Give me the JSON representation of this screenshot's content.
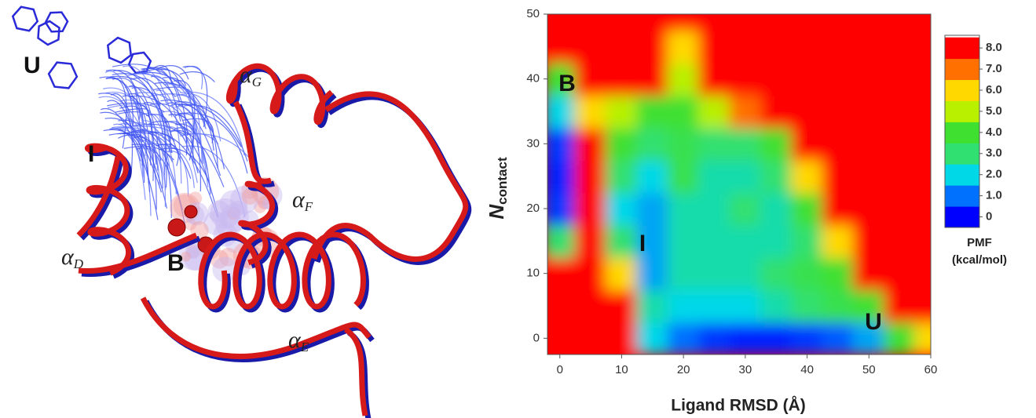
{
  "structure_panel": {
    "labels": [
      {
        "symbol": "U"
      },
      {
        "symbol": "I"
      },
      {
        "symbol": "B"
      },
      {
        "symbol": "α",
        "subscript": "G"
      },
      {
        "symbol": "α",
        "subscript": "F"
      },
      {
        "symbol": "α",
        "subscript": "D"
      },
      {
        "symbol": "α",
        "subscript": "E"
      }
    ]
  },
  "chart_data": {
    "type": "contour",
    "x_label": "Ligand RMSD (Å)",
    "y_label": {
      "symbol": "N",
      "subscript": "contact"
    },
    "annotations": [
      "B",
      "I",
      "U"
    ],
    "xlim": [
      -2,
      60
    ],
    "ylim": [
      -2.5,
      50
    ],
    "xticks": [
      0,
      10,
      20,
      30,
      40,
      50,
      60
    ],
    "yticks": [
      0,
      10,
      20,
      30,
      40,
      50
    ],
    "x": [
      0,
      5,
      10,
      15,
      20,
      25,
      30,
      35,
      40,
      45,
      50,
      55,
      60
    ],
    "y": [
      0,
      5,
      10,
      15,
      20,
      25,
      30,
      35,
      40,
      45,
      50
    ],
    "z": [
      [
        8,
        8,
        8,
        2,
        1,
        0.5,
        0.3,
        0.3,
        0.5,
        0.8,
        1.5,
        4,
        6
      ],
      [
        8,
        8,
        8,
        2.5,
        2,
        2,
        2,
        2.5,
        3,
        3.5,
        4,
        8,
        8
      ],
      [
        8,
        8,
        6,
        1.5,
        2.5,
        2.5,
        2.5,
        3,
        3.5,
        4,
        8,
        8,
        8
      ],
      [
        3,
        8,
        3,
        1.5,
        2.5,
        2.5,
        2.5,
        2.5,
        3,
        6,
        8,
        8,
        8
      ],
      [
        0.5,
        8,
        2,
        1.5,
        2.5,
        2.5,
        3,
        2.5,
        4,
        8,
        8,
        8,
        8
      ],
      [
        0.3,
        8,
        3,
        2,
        3.5,
        2.5,
        2.5,
        3,
        6,
        8,
        8,
        8,
        8
      ],
      [
        0.5,
        8,
        4,
        3,
        3.5,
        3,
        3,
        4,
        8,
        8,
        8,
        8,
        8
      ],
      [
        2,
        6,
        5,
        4,
        4,
        5,
        7,
        8,
        8,
        8,
        8,
        8,
        8
      ],
      [
        4,
        8,
        8,
        8,
        5,
        8,
        8,
        8,
        8,
        8,
        8,
        8,
        8
      ],
      [
        8,
        8,
        8,
        8,
        6,
        8,
        8,
        8,
        8,
        8,
        8,
        8,
        8
      ],
      [
        8,
        8,
        8,
        8,
        8,
        8,
        8,
        8,
        8,
        8,
        8,
        8,
        8
      ]
    ],
    "colormap": [
      "#0000ff",
      "#0070ff",
      "#00d8e8",
      "#30e070",
      "#40e030",
      "#b8f000",
      "#ffd800",
      "#ff7000",
      "#ff0000"
    ],
    "clim": [
      -0.5,
      8.6
    ],
    "colorbar_title": [
      "PMF",
      "(kcal/mol)"
    ],
    "colorbar_ticks": [
      0,
      {
        "value": 1,
        "label": "1.0"
      },
      {
        "value": 2,
        "label": "2.0"
      },
      {
        "value": 3,
        "label": "3.0"
      },
      {
        "value": 4,
        "label": "4.0"
      },
      {
        "value": 5,
        "label": "5.0"
      },
      {
        "value": 6,
        "label": "6.0"
      },
      {
        "value": 7,
        "label": "7.0"
      },
      {
        "value": 8,
        "label": "8.0"
      }
    ]
  }
}
